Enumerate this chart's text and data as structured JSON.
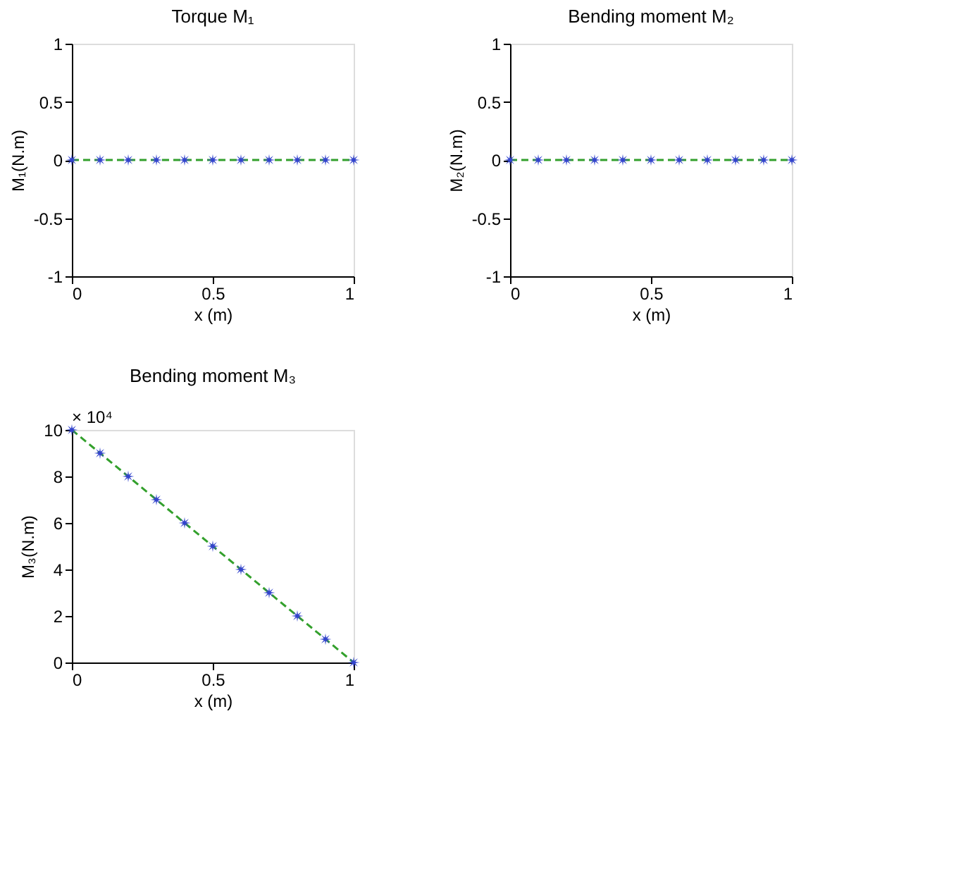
{
  "chart_data": [
    {
      "type": "line",
      "title": "Torque M₁",
      "xlabel": "x (m)",
      "ylabel": "M₁(N.m)",
      "x": [
        0,
        0.1,
        0.2,
        0.3,
        0.4,
        0.5,
        0.6,
        0.7,
        0.8,
        0.9,
        1
      ],
      "xlim": [
        0,
        1
      ],
      "xticks": [
        0,
        0.5,
        1
      ],
      "ylim": [
        -1,
        1
      ],
      "yticks": [
        -1,
        -0.5,
        0,
        0.5,
        1
      ],
      "grid": false,
      "series": [
        {
          "color": "#33a02c",
          "line_style": "dashed",
          "marker": "none",
          "values": [
            0,
            0,
            0,
            0,
            0,
            0,
            0,
            0,
            0,
            0,
            0
          ]
        },
        {
          "type": "scatter",
          "color": "#3344cc",
          "marker": "star",
          "values": [
            0,
            0,
            0,
            0,
            0,
            0,
            0,
            0,
            0,
            0,
            0
          ]
        }
      ]
    },
    {
      "type": "line",
      "title": "Bending moment M₂",
      "xlabel": "x (m)",
      "ylabel": "M₂(N.m)",
      "x": [
        0,
        0.1,
        0.2,
        0.3,
        0.4,
        0.5,
        0.6,
        0.7,
        0.8,
        0.9,
        1
      ],
      "xlim": [
        0,
        1
      ],
      "xticks": [
        0,
        0.5,
        1
      ],
      "ylim": [
        -1,
        1
      ],
      "yticks": [
        -1,
        -0.5,
        0,
        0.5,
        1
      ],
      "grid": false,
      "series": [
        {
          "color": "#33a02c",
          "line_style": "dashed",
          "marker": "none",
          "values": [
            0,
            0,
            0,
            0,
            0,
            0,
            0,
            0,
            0,
            0,
            0
          ]
        },
        {
          "type": "scatter",
          "color": "#3344cc",
          "marker": "star",
          "values": [
            0,
            0,
            0,
            0,
            0,
            0,
            0,
            0,
            0,
            0,
            0
          ]
        }
      ]
    },
    {
      "type": "line",
      "title": "Bending moment M₃",
      "xlabel": "x (m)",
      "ylabel": "M₃(N.m)",
      "annotations": [
        "× 10⁴"
      ],
      "x": [
        0,
        0.1,
        0.2,
        0.3,
        0.4,
        0.5,
        0.6,
        0.7,
        0.8,
        0.9,
        1
      ],
      "xlim": [
        0,
        1
      ],
      "xticks": [
        0,
        0.5,
        1
      ],
      "ylim": [
        0,
        10
      ],
      "yticks": [
        0,
        2,
        4,
        6,
        8,
        10
      ],
      "grid": false,
      "series": [
        {
          "color": "#33a02c",
          "line_style": "dashed",
          "marker": "none",
          "values": [
            10,
            9,
            8,
            7,
            6,
            5,
            4,
            3,
            2,
            1,
            0
          ]
        },
        {
          "type": "scatter",
          "color": "#3344cc",
          "marker": "star",
          "values": [
            10,
            9,
            8,
            7,
            6,
            5,
            4,
            3,
            2,
            1,
            0
          ]
        }
      ]
    }
  ]
}
